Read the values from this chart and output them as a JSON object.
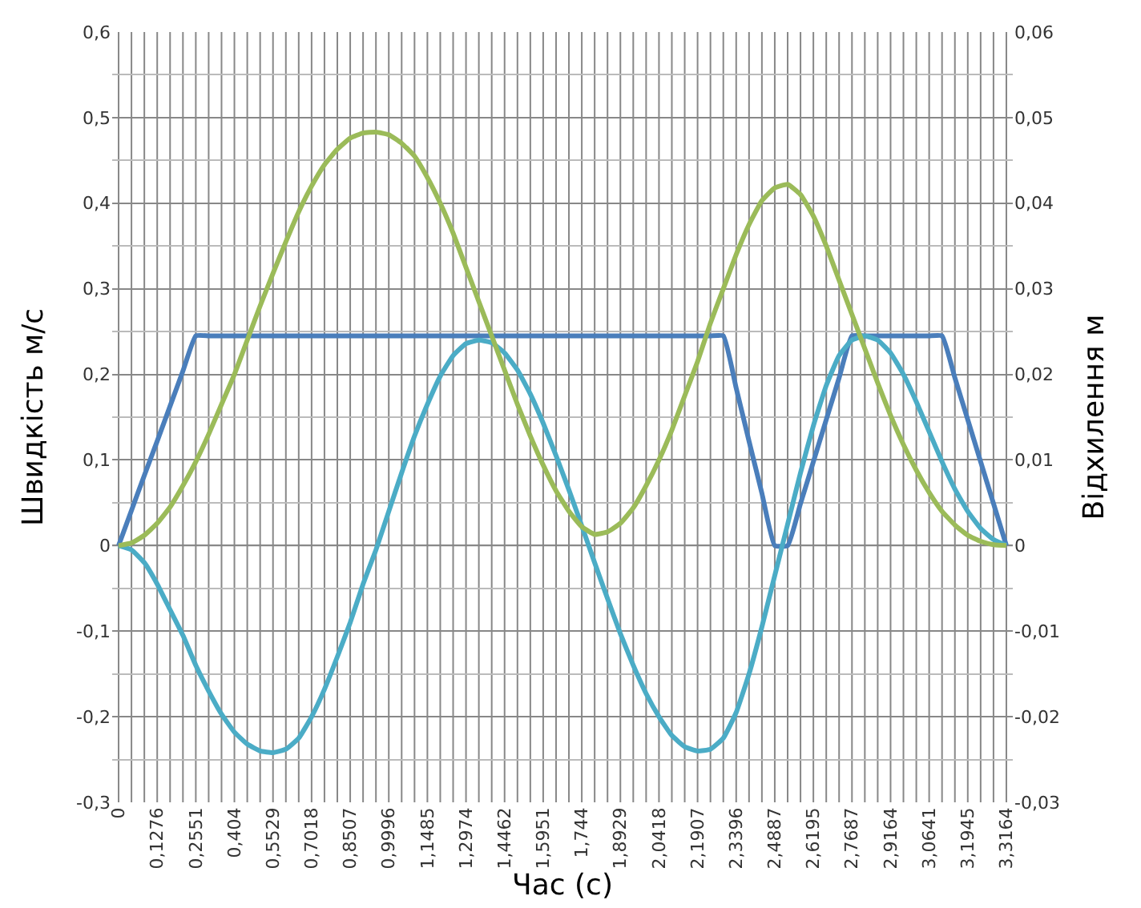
{
  "chart_data": {
    "type": "line",
    "xlabel": "Час (с)",
    "ylabel": "Швидкість м/с",
    "y2label": "Відхилення м",
    "categories": [
      "0",
      null,
      null,
      "0,1276",
      null,
      null,
      "0,2551",
      null,
      null,
      "0,404",
      null,
      null,
      "0,5529",
      null,
      null,
      "0,7018",
      null,
      null,
      "0,8507",
      null,
      null,
      "0,9996",
      null,
      null,
      "1,1485",
      null,
      null,
      "1,2974",
      null,
      null,
      "1,4462",
      null,
      null,
      "1,5951",
      null,
      null,
      "1,744",
      null,
      null,
      "1,8929",
      null,
      null,
      "2,0418",
      null,
      null,
      "2,1907",
      null,
      null,
      "2,3396",
      null,
      null,
      "2,4887",
      null,
      null,
      "2,6195",
      null,
      null,
      "2,7687",
      null,
      null,
      "2,9164",
      null,
      null,
      "3,0641",
      null,
      null,
      "3,1945",
      null,
      null,
      "3,3164"
    ],
    "series": [
      {
        "color": "#4a7ebb",
        "values": [
          0,
          0.041,
          0.082,
          0.122,
          0.163,
          0.204,
          0.245,
          0.245,
          0.245,
          0.245,
          0.245,
          0.245,
          0.245,
          0.245,
          0.245,
          0.245,
          0.245,
          0.245,
          0.245,
          0.245,
          0.245,
          0.245,
          0.245,
          0.245,
          0.245,
          0.245,
          0.245,
          0.245,
          0.245,
          0.245,
          0.245,
          0.245,
          0.245,
          0.245,
          0.245,
          0.245,
          0.245,
          0.245,
          0.245,
          0.245,
          0.245,
          0.245,
          0.245,
          0.245,
          0.245,
          0.245,
          0.245,
          0.245,
          0.184,
          0.122,
          0.061,
          0,
          0,
          0.049,
          0.098,
          0.147,
          0.196,
          0.245,
          0.245,
          0.245,
          0.245,
          0.245,
          0.245,
          0.245,
          0.245,
          0.196,
          0.147,
          0.098,
          0.049,
          0
        ]
      },
      {
        "color": "#9bbb59",
        "axis": "y2",
        "values": [
          0,
          0.0003,
          0.0012,
          0.0026,
          0.0045,
          0.007,
          0.0098,
          0.013,
          0.0165,
          0.02,
          0.024,
          0.028,
          0.0318,
          0.0355,
          0.039,
          0.042,
          0.0445,
          0.0463,
          0.0476,
          0.0482,
          0.0483,
          0.048,
          0.047,
          0.0455,
          0.043,
          0.04,
          0.0365,
          0.0325,
          0.0285,
          0.0245,
          0.0205,
          0.0165,
          0.0128,
          0.0094,
          0.0064,
          0.004,
          0.0022,
          0.0013,
          0.0016,
          0.0026,
          0.0044,
          0.007,
          0.01,
          0.0135,
          0.0175,
          0.0215,
          0.026,
          0.03,
          0.034,
          0.0375,
          0.0403,
          0.0418,
          0.0422,
          0.041,
          0.0385,
          0.035,
          0.031,
          0.027,
          0.023,
          0.019,
          0.0152,
          0.0118,
          0.0088,
          0.0062,
          0.004,
          0.0024,
          0.0012,
          0.0005,
          0.0001,
          0
        ]
      },
      {
        "color": "#4bacc6",
        "values": [
          0,
          -0.005,
          -0.02,
          -0.045,
          -0.075,
          -0.105,
          -0.14,
          -0.17,
          -0.197,
          -0.218,
          -0.232,
          -0.24,
          -0.242,
          -0.238,
          -0.225,
          -0.2,
          -0.168,
          -0.13,
          -0.09,
          -0.045,
          -0.005,
          0.04,
          0.085,
          0.128,
          0.165,
          0.198,
          0.222,
          0.236,
          0.24,
          0.237,
          0.225,
          0.205,
          0.177,
          0.143,
          0.105,
          0.065,
          0.023,
          -0.02,
          -0.062,
          -0.103,
          -0.14,
          -0.173,
          -0.2,
          -0.222,
          -0.235,
          -0.24,
          -0.238,
          -0.225,
          -0.195,
          -0.15,
          -0.095,
          -0.035,
          0.025,
          0.085,
          0.14,
          0.187,
          0.222,
          0.24,
          0.245,
          0.24,
          0.225,
          0.2,
          0.168,
          0.133,
          0.098,
          0.066,
          0.04,
          0.02,
          0.007,
          0
        ]
      }
    ],
    "ylim": [
      -0.3,
      0.6
    ],
    "yticks": [
      {
        "value": -0.3,
        "label": "-0,3"
      },
      {
        "value": -0.2,
        "label": "-0,2"
      },
      {
        "value": -0.1,
        "label": "-0,1"
      },
      0,
      {
        "value": 0.1,
        "label": "0,1"
      },
      {
        "value": 0.2,
        "label": "0,2"
      },
      {
        "value": 0.3,
        "label": "0,3"
      },
      {
        "value": 0.4,
        "label": "0,4"
      },
      {
        "value": 0.5,
        "label": "0,5"
      },
      {
        "value": 0.6,
        "label": "0,6"
      }
    ],
    "y2lim": [
      -0.03,
      0.06
    ],
    "y2ticks": [
      {
        "value": -0.03,
        "label": "-0,03"
      },
      {
        "value": -0.02,
        "label": "-0,02"
      },
      {
        "value": -0.01,
        "label": "-0,01"
      },
      0,
      {
        "value": 0.01,
        "label": "0,01"
      },
      {
        "value": 0.02,
        "label": "0,02"
      },
      {
        "value": 0.03,
        "label": "0,03"
      },
      {
        "value": 0.04,
        "label": "0,04"
      },
      {
        "value": 0.05,
        "label": "0,05"
      },
      {
        "value": 0.06,
        "label": "0,06"
      }
    ],
    "grid": true,
    "marker": "none",
    "line_style": "solid"
  }
}
